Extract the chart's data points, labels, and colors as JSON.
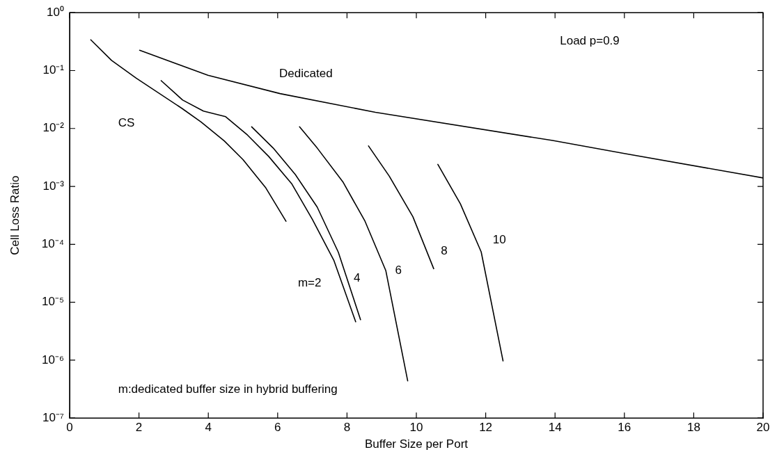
{
  "chart_data": {
    "type": "line",
    "xlabel": "Buffer Size per Port",
    "ylabel": "Cell Loss Ratio",
    "log": "y",
    "grid": false,
    "xlim": [
      0,
      20
    ],
    "xticks": [
      0,
      2,
      4,
      6,
      8,
      10,
      12,
      14,
      16,
      18,
      20
    ],
    "ylim": [
      1e-07,
      1
    ],
    "yticks": [
      {
        "value": 1e-07,
        "label": "10⁻⁷"
      },
      {
        "value": 1e-06,
        "label": "10⁻⁶"
      },
      {
        "value": 1e-05,
        "label": "10⁻⁵"
      },
      {
        "value": 0.0001,
        "label": "10⁻⁴"
      },
      {
        "value": 0.001,
        "label": "10⁻³"
      },
      {
        "value": 0.01,
        "label": "10⁻²"
      },
      {
        "value": 0.1,
        "label": "10⁻¹"
      },
      {
        "value": 1,
        "label": "10⁰"
      }
    ],
    "series": [
      {
        "name": "Dedicated",
        "color": "#000000",
        "x": [
          2.02,
          3.99,
          6.07,
          8.82,
          13.93,
          16.0,
          20
        ],
        "values": [
          0.224,
          0.083,
          0.04,
          0.019,
          0.0062,
          0.0037,
          0.0014
        ]
      },
      {
        "name": "CS",
        "color": "#000000",
        "x": [
          0.61,
          1.21,
          1.92,
          3.25,
          3.79,
          4.46,
          5.0,
          5.66,
          6.24
        ],
        "values": [
          0.34,
          0.15,
          0.074,
          0.022,
          0.013,
          0.0061,
          0.0029,
          0.00094,
          0.00025
        ]
      },
      {
        "name": "m=2",
        "color": "#000000",
        "x": [
          2.64,
          3.26,
          3.86,
          4.5,
          5.13,
          5.74,
          6.41,
          7.0,
          7.62,
          8.25
        ],
        "values": [
          0.067,
          0.031,
          0.02,
          0.016,
          0.0077,
          0.0033,
          0.0011,
          0.00027,
          5.3e-05,
          4.6e-06
        ]
      },
      {
        "name": "4",
        "color": "#000000",
        "x": [
          5.25,
          5.87,
          6.51,
          7.14,
          7.75,
          8.39
        ],
        "values": [
          0.0107,
          0.0046,
          0.0016,
          0.00044,
          7.3e-05,
          5e-06
        ]
      },
      {
        "name": "6",
        "color": "#000000",
        "x": [
          6.63,
          7.14,
          7.88,
          8.52,
          9.12,
          9.75
        ],
        "values": [
          0.0107,
          0.0046,
          0.0012,
          0.00025,
          3.5e-05,
          4.4e-07
        ]
      },
      {
        "name": "8",
        "color": "#000000",
        "x": [
          8.62,
          9.22,
          9.9,
          10.5
        ],
        "values": [
          0.005,
          0.0015,
          0.0003,
          3.8e-05
        ]
      },
      {
        "name": "10",
        "color": "#000000",
        "x": [
          10.62,
          11.27,
          11.87,
          12.5
        ],
        "values": [
          0.0024,
          0.0005,
          7.4e-05,
          9.7e-07
        ]
      }
    ],
    "annotations": [
      "Load p=0.9",
      "m:dedicated buffer size in hybrid buffering"
    ]
  }
}
